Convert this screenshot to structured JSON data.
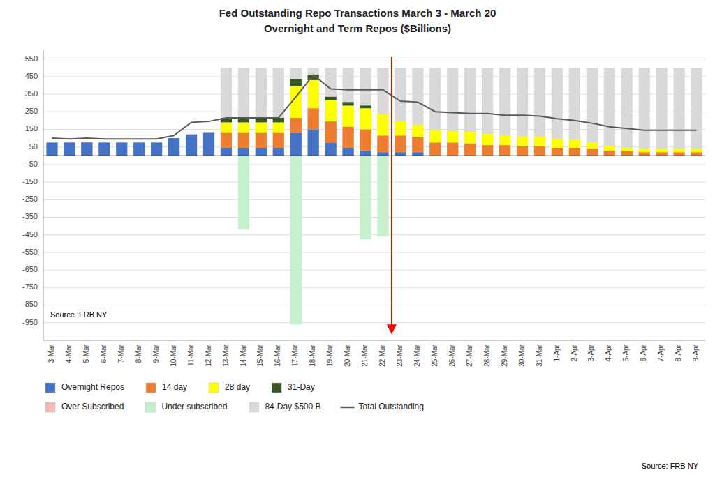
{
  "chart_data": {
    "type": "bar",
    "title": "Fed Outstanding Repo Transactions March 3 - March 20",
    "subtitle": "Overnight and Term  Repos ($Billions)",
    "categories": [
      "3-Mar",
      "4-Mar",
      "5-Mar",
      "6-Mar",
      "7-Mar",
      "8-Mar",
      "9-Mar",
      "10-Mar",
      "11-Mar",
      "12-Mar",
      "13-Mar",
      "14-Mar",
      "15-Mar",
      "16-Mar",
      "17-Mar",
      "18-Mar",
      "19-Mar",
      "20-Mar",
      "21-Mar",
      "22-Mar",
      "23-Mar",
      "24-Mar",
      "25-Mar",
      "26-Mar",
      "27-Mar",
      "28-Mar",
      "29-Mar",
      "30-Mar",
      "31-Mar",
      "1-Apr",
      "2-Apr",
      "3-Apr",
      "4-Apr",
      "5-Apr",
      "6-Apr",
      "7-Apr",
      "8-Apr",
      "9-Apr"
    ],
    "series": [
      {
        "name": "Overnight Repos",
        "type": "bar",
        "stacked": true,
        "color": "#4472C4",
        "values": [
          75,
          75,
          75,
          75,
          75,
          75,
          75,
          100,
          120,
          130,
          45,
          45,
          45,
          45,
          130,
          150,
          75,
          45,
          30,
          20,
          20,
          20,
          0,
          0,
          0,
          0,
          0,
          0,
          0,
          0,
          0,
          0,
          0,
          0,
          0,
          0,
          0,
          0
        ]
      },
      {
        "name": "14 day",
        "type": "bar",
        "stacked": true,
        "color": "#ED7D31",
        "values": [
          0,
          0,
          0,
          0,
          0,
          0,
          0,
          0,
          0,
          0,
          85,
          85,
          85,
          85,
          85,
          120,
          120,
          120,
          120,
          95,
          95,
          85,
          75,
          75,
          70,
          60,
          60,
          55,
          55,
          45,
          45,
          40,
          30,
          25,
          20,
          20,
          20,
          20
        ]
      },
      {
        "name": "28 day",
        "type": "bar",
        "stacked": true,
        "color": "#FFFF00",
        "values": [
          0,
          0,
          0,
          0,
          0,
          0,
          0,
          0,
          0,
          0,
          60,
          60,
          60,
          60,
          180,
          160,
          120,
          120,
          120,
          120,
          80,
          70,
          70,
          65,
          65,
          65,
          55,
          55,
          55,
          50,
          45,
          35,
          25,
          20,
          20,
          20,
          20,
          20
        ]
      },
      {
        "name": "31-Day",
        "type": "bar",
        "stacked": true,
        "color": "#375623",
        "values": [
          0,
          0,
          0,
          0,
          0,
          0,
          0,
          0,
          0,
          0,
          25,
          25,
          25,
          25,
          40,
          30,
          20,
          20,
          15,
          0,
          0,
          0,
          0,
          0,
          0,
          0,
          0,
          0,
          0,
          0,
          0,
          0,
          0,
          0,
          0,
          0,
          0,
          0
        ]
      },
      {
        "name": "Over Subscribed",
        "type": "bar",
        "stacked": false,
        "color": "#F4B8B8",
        "values": [
          0,
          0,
          80,
          0,
          0,
          0,
          0,
          0,
          125,
          0,
          0,
          0,
          0,
          0,
          0,
          0,
          0,
          0,
          0,
          0,
          0,
          0,
          0,
          0,
          0,
          0,
          0,
          0,
          0,
          0,
          0,
          0,
          0,
          0,
          0,
          0,
          0,
          0
        ]
      },
      {
        "name": "Under subscribed",
        "type": "bar",
        "stacked": false,
        "color": "#C6EFCE",
        "values": [
          0,
          0,
          0,
          0,
          0,
          0,
          0,
          0,
          0,
          0,
          0,
          -420,
          0,
          0,
          -960,
          0,
          0,
          0,
          -475,
          -460,
          0,
          0,
          0,
          0,
          0,
          0,
          0,
          0,
          0,
          0,
          0,
          0,
          0,
          0,
          0,
          0,
          0,
          0
        ]
      },
      {
        "name": "84-Day $500 B",
        "type": "bar",
        "stacked": false,
        "color": "#D9D9D9",
        "values": [
          0,
          0,
          0,
          0,
          0,
          0,
          0,
          0,
          0,
          0,
          500,
          500,
          500,
          500,
          500,
          500,
          500,
          500,
          500,
          500,
          500,
          500,
          500,
          500,
          500,
          500,
          500,
          500,
          500,
          500,
          500,
          500,
          500,
          500,
          500,
          500,
          500,
          500
        ]
      },
      {
        "name": "Total Outstanding",
        "type": "line",
        "color": "#595959",
        "values": [
          100,
          95,
          100,
          95,
          95,
          95,
          95,
          115,
          190,
          195,
          215,
          215,
          215,
          215,
          335,
          460,
          380,
          375,
          375,
          375,
          310,
          305,
          250,
          245,
          240,
          240,
          230,
          230,
          225,
          210,
          200,
          185,
          165,
          155,
          145,
          145,
          145,
          145
        ]
      }
    ],
    "annotations": [
      {
        "text": "Source :FRB NY"
      },
      {
        "text": "Source: FRB NY"
      },
      {
        "type": "arrow",
        "x": 19.5,
        "y_from": 560,
        "y_to": -1010,
        "color": "#FF0000"
      }
    ],
    "ylim": [
      -1050,
      600
    ],
    "yticks": [
      -950,
      -850,
      -750,
      -650,
      -550,
      -450,
      -350,
      -250,
      -150,
      -50,
      50,
      150,
      250,
      350,
      450,
      550
    ],
    "grid": true,
    "legend": "bottom"
  }
}
